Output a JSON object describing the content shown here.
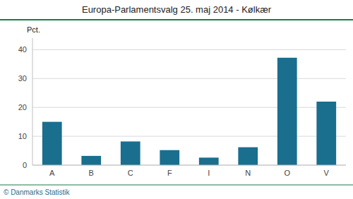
{
  "chart_data": {
    "type": "bar",
    "title": "Europa-Parlamentsvalg 25. maj 2014 - Kølkær",
    "ylabel": "Pct.",
    "annotations": [
      "© Danmarks Statistik"
    ],
    "categories": [
      "A",
      "B",
      "C",
      "F",
      "I",
      "N",
      "O",
      "V"
    ],
    "values": [
      15.0,
      3.2,
      8.2,
      5.2,
      2.6,
      6.2,
      37.2,
      22.0
    ],
    "color": "#1a6e8e",
    "ylim": [
      0,
      44
    ],
    "yticks": [
      0,
      10,
      20,
      30,
      40
    ],
    "grid": true
  }
}
